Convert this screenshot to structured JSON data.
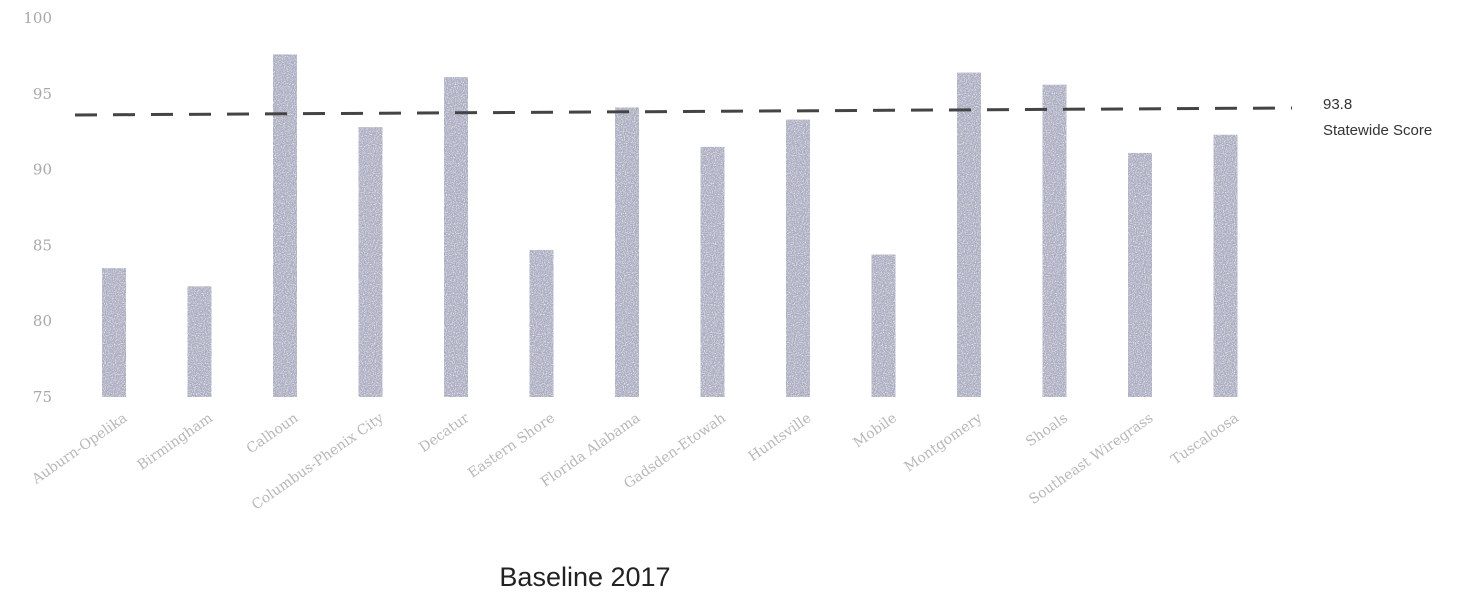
{
  "chart_data": {
    "type": "bar",
    "title": "Baseline 2017",
    "xlabel": "",
    "ylabel": "",
    "ylim": [
      75,
      100
    ],
    "yticks": [
      75,
      80,
      85,
      90,
      95,
      100
    ],
    "categories": [
      "Auburn-Opelika",
      "Birmingham",
      "Calhoun",
      "Columbus-Phenix City",
      "Decatur",
      "Eastern Shore",
      "Florida Alabama",
      "Gadsden-Etowah",
      "Huntsville",
      "Mobile",
      "Montgomery",
      "Shoals",
      "Southeast Wiregrass",
      "Tuscaloosa"
    ],
    "values": [
      83.5,
      82.3,
      97.6,
      92.8,
      96.1,
      84.7,
      94.1,
      91.5,
      93.3,
      84.4,
      96.4,
      95.6,
      91.1,
      92.3
    ],
    "bar_color": "#a9abbf",
    "reference_line": {
      "value": "93.8",
      "label": "Statewide Score",
      "style": "dashed",
      "color": "#444444"
    },
    "grid": false,
    "legend": "none"
  }
}
